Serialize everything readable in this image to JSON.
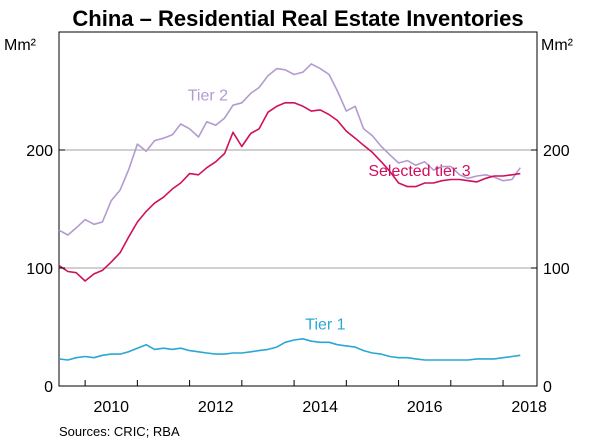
{
  "source_note": "Sources:   CRIC; RBA",
  "chart_data": {
    "type": "line",
    "title": "China – Residential Real Estate Inventories",
    "unit_left": "Mm²",
    "unit_right": "Mm²",
    "xlim": [
      2009.5,
      2018.65
    ],
    "ylim": [
      0,
      300
    ],
    "x_ticks": [
      2010,
      2012,
      2014,
      2016,
      2018
    ],
    "y_ticks": [
      0,
      100,
      200
    ],
    "grid_y": [
      100,
      200
    ],
    "series": [
      {
        "name": "Tier 2",
        "color": "#b39ad0",
        "x": [
          2009.5,
          2009.67,
          2009.83,
          2010.0,
          2010.17,
          2010.33,
          2010.5,
          2010.67,
          2010.83,
          2011.0,
          2011.17,
          2011.33,
          2011.5,
          2011.67,
          2011.83,
          2012.0,
          2012.17,
          2012.33,
          2012.5,
          2012.67,
          2012.83,
          2013.0,
          2013.17,
          2013.33,
          2013.5,
          2013.67,
          2013.83,
          2014.0,
          2014.17,
          2014.33,
          2014.5,
          2014.67,
          2014.83,
          2015.0,
          2015.17,
          2015.33,
          2015.5,
          2015.67,
          2015.83,
          2016.0,
          2016.17,
          2016.33,
          2016.5,
          2016.67,
          2016.83,
          2017.0,
          2017.17,
          2017.33,
          2017.5,
          2017.67,
          2017.83,
          2018.0,
          2018.17,
          2018.33
        ],
        "values": [
          132,
          128,
          134,
          141,
          137,
          139,
          157,
          166,
          183,
          205,
          199,
          208,
          210,
          213,
          222,
          218,
          211,
          224,
          221,
          227,
          238,
          240,
          248,
          253,
          263,
          269,
          268,
          264,
          266,
          273,
          269,
          264,
          250,
          233,
          237,
          218,
          212,
          203,
          196,
          189,
          191,
          187,
          190,
          183,
          186,
          186,
          179,
          176,
          178,
          179,
          177,
          174,
          175,
          185
        ]
      },
      {
        "name": "Selected tier 3",
        "color": "#d0105c",
        "x": [
          2009.5,
          2009.67,
          2009.83,
          2010.0,
          2010.17,
          2010.33,
          2010.5,
          2010.67,
          2010.83,
          2011.0,
          2011.17,
          2011.33,
          2011.5,
          2011.67,
          2011.83,
          2012.0,
          2012.17,
          2012.33,
          2012.5,
          2012.67,
          2012.83,
          2013.0,
          2013.17,
          2013.33,
          2013.5,
          2013.67,
          2013.83,
          2014.0,
          2014.17,
          2014.33,
          2014.5,
          2014.67,
          2014.83,
          2015.0,
          2015.17,
          2015.33,
          2015.5,
          2015.67,
          2015.83,
          2016.0,
          2016.17,
          2016.33,
          2016.5,
          2016.67,
          2016.83,
          2017.0,
          2017.17,
          2017.33,
          2017.5,
          2017.67,
          2017.83,
          2018.0,
          2018.17,
          2018.33
        ],
        "values": [
          102,
          97,
          96,
          89,
          95,
          98,
          105,
          113,
          126,
          139,
          148,
          155,
          160,
          167,
          172,
          180,
          179,
          185,
          190,
          197,
          215,
          203,
          214,
          218,
          232,
          237,
          240,
          240,
          237,
          233,
          234,
          230,
          225,
          216,
          210,
          204,
          198,
          190,
          182,
          172,
          169,
          169,
          172,
          172,
          174,
          175,
          175,
          174,
          173,
          176,
          178,
          178,
          179,
          180
        ]
      },
      {
        "name": "Tier 1",
        "color": "#2aa7d6",
        "x": [
          2009.5,
          2009.67,
          2009.83,
          2010.0,
          2010.17,
          2010.33,
          2010.5,
          2010.67,
          2010.83,
          2011.0,
          2011.17,
          2011.33,
          2011.5,
          2011.67,
          2011.83,
          2012.0,
          2012.17,
          2012.33,
          2012.5,
          2012.67,
          2012.83,
          2013.0,
          2013.17,
          2013.33,
          2013.5,
          2013.67,
          2013.83,
          2014.0,
          2014.17,
          2014.33,
          2014.5,
          2014.67,
          2014.83,
          2015.0,
          2015.17,
          2015.33,
          2015.5,
          2015.67,
          2015.83,
          2016.0,
          2016.17,
          2016.33,
          2016.5,
          2016.67,
          2016.83,
          2017.0,
          2017.17,
          2017.33,
          2017.5,
          2017.67,
          2017.83,
          2018.0,
          2018.17,
          2018.33
        ],
        "values": [
          23,
          22,
          24,
          25,
          24,
          26,
          27,
          27,
          29,
          32,
          35,
          31,
          32,
          31,
          32,
          30,
          29,
          28,
          27,
          27,
          28,
          28,
          29,
          30,
          31,
          33,
          37,
          39,
          40,
          38,
          37,
          37,
          35,
          34,
          33,
          30,
          28,
          27,
          25,
          24,
          24,
          23,
          22,
          22,
          22,
          22,
          22,
          22,
          23,
          23,
          23,
          24,
          25,
          26
        ]
      }
    ],
    "series_label_positions": [
      {
        "name": "Tier 2",
        "x": 2012.35,
        "y": 242
      },
      {
        "name": "Selected tier 3",
        "x": 2016.4,
        "y": 178
      },
      {
        "name": "Tier 1",
        "x": 2014.6,
        "y": 48
      }
    ]
  }
}
